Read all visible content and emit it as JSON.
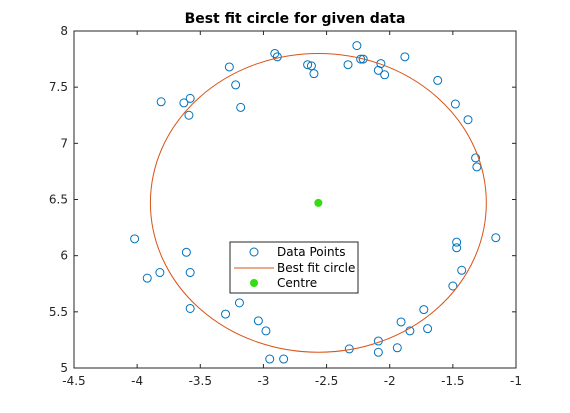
{
  "chart_data": {
    "type": "scatter",
    "title": "Best fit circle for given data",
    "xlabel": "",
    "ylabel": "",
    "xlim": [
      -4.5,
      -1
    ],
    "ylim": [
      5,
      8
    ],
    "xticks": [
      -4.5,
      -4,
      -3.5,
      -3,
      -2.5,
      -2,
      -1.5,
      -1
    ],
    "yticks": [
      5,
      5.5,
      6,
      6.5,
      7,
      7.5,
      8
    ],
    "xtick_labels": [
      "-4.5",
      "-4",
      "-3.5",
      "-3",
      "-2.5",
      "-2",
      "-1.5",
      "-1"
    ],
    "ytick_labels": [
      "5",
      "5.5",
      "6",
      "6.5",
      "7",
      "7.5",
      "8"
    ],
    "grid": false,
    "legend_position": "center",
    "series": [
      {
        "name": "Data Points",
        "kind": "scatter",
        "marker": "open-circle",
        "color": "#0072BD",
        "points": [
          [
            -2.26,
            7.87
          ],
          [
            -2.23,
            7.75
          ],
          [
            -2.21,
            7.75
          ],
          [
            -2.07,
            7.71
          ],
          [
            -2.04,
            7.61
          ],
          [
            -2.33,
            7.7
          ],
          [
            -2.09,
            7.65
          ],
          [
            -1.88,
            7.77
          ],
          [
            -2.91,
            7.8
          ],
          [
            -2.89,
            7.77
          ],
          [
            -2.65,
            7.7
          ],
          [
            -2.62,
            7.69
          ],
          [
            -2.6,
            7.62
          ],
          [
            -3.27,
            7.68
          ],
          [
            -3.22,
            7.52
          ],
          [
            -3.18,
            7.32
          ],
          [
            -3.58,
            7.4
          ],
          [
            -3.63,
            7.36
          ],
          [
            -3.81,
            7.37
          ],
          [
            -3.59,
            7.25
          ],
          [
            -1.62,
            7.56
          ],
          [
            -1.48,
            7.35
          ],
          [
            -1.38,
            7.21
          ],
          [
            -1.32,
            6.87
          ],
          [
            -1.31,
            6.79
          ],
          [
            -4.02,
            6.15
          ],
          [
            -3.61,
            6.03
          ],
          [
            -3.58,
            5.85
          ],
          [
            -3.82,
            5.85
          ],
          [
            -3.92,
            5.8
          ],
          [
            -3.58,
            5.53
          ],
          [
            -3.19,
            5.58
          ],
          [
            -3.3,
            5.48
          ],
          [
            -3.04,
            5.42
          ],
          [
            -2.98,
            5.33
          ],
          [
            -2.95,
            5.08
          ],
          [
            -2.84,
            5.08
          ],
          [
            -2.32,
            5.17
          ],
          [
            -2.09,
            5.14
          ],
          [
            -2.09,
            5.24
          ],
          [
            -1.94,
            5.18
          ],
          [
            -1.91,
            5.41
          ],
          [
            -1.84,
            5.33
          ],
          [
            -1.73,
            5.52
          ],
          [
            -1.7,
            5.35
          ],
          [
            -1.5,
            5.73
          ],
          [
            -1.43,
            5.87
          ],
          [
            -1.47,
            6.07
          ],
          [
            -1.47,
            6.12
          ],
          [
            -1.16,
            6.16
          ]
        ]
      },
      {
        "name": "Best fit circle",
        "kind": "circle",
        "color": "#D95319",
        "center": [
          -2.565,
          6.47
        ],
        "radius": 1.33
      },
      {
        "name": "Centre",
        "kind": "point",
        "marker": "filled-circle",
        "color": "#33DD11",
        "points": [
          [
            -2.565,
            6.47
          ]
        ]
      }
    ]
  }
}
